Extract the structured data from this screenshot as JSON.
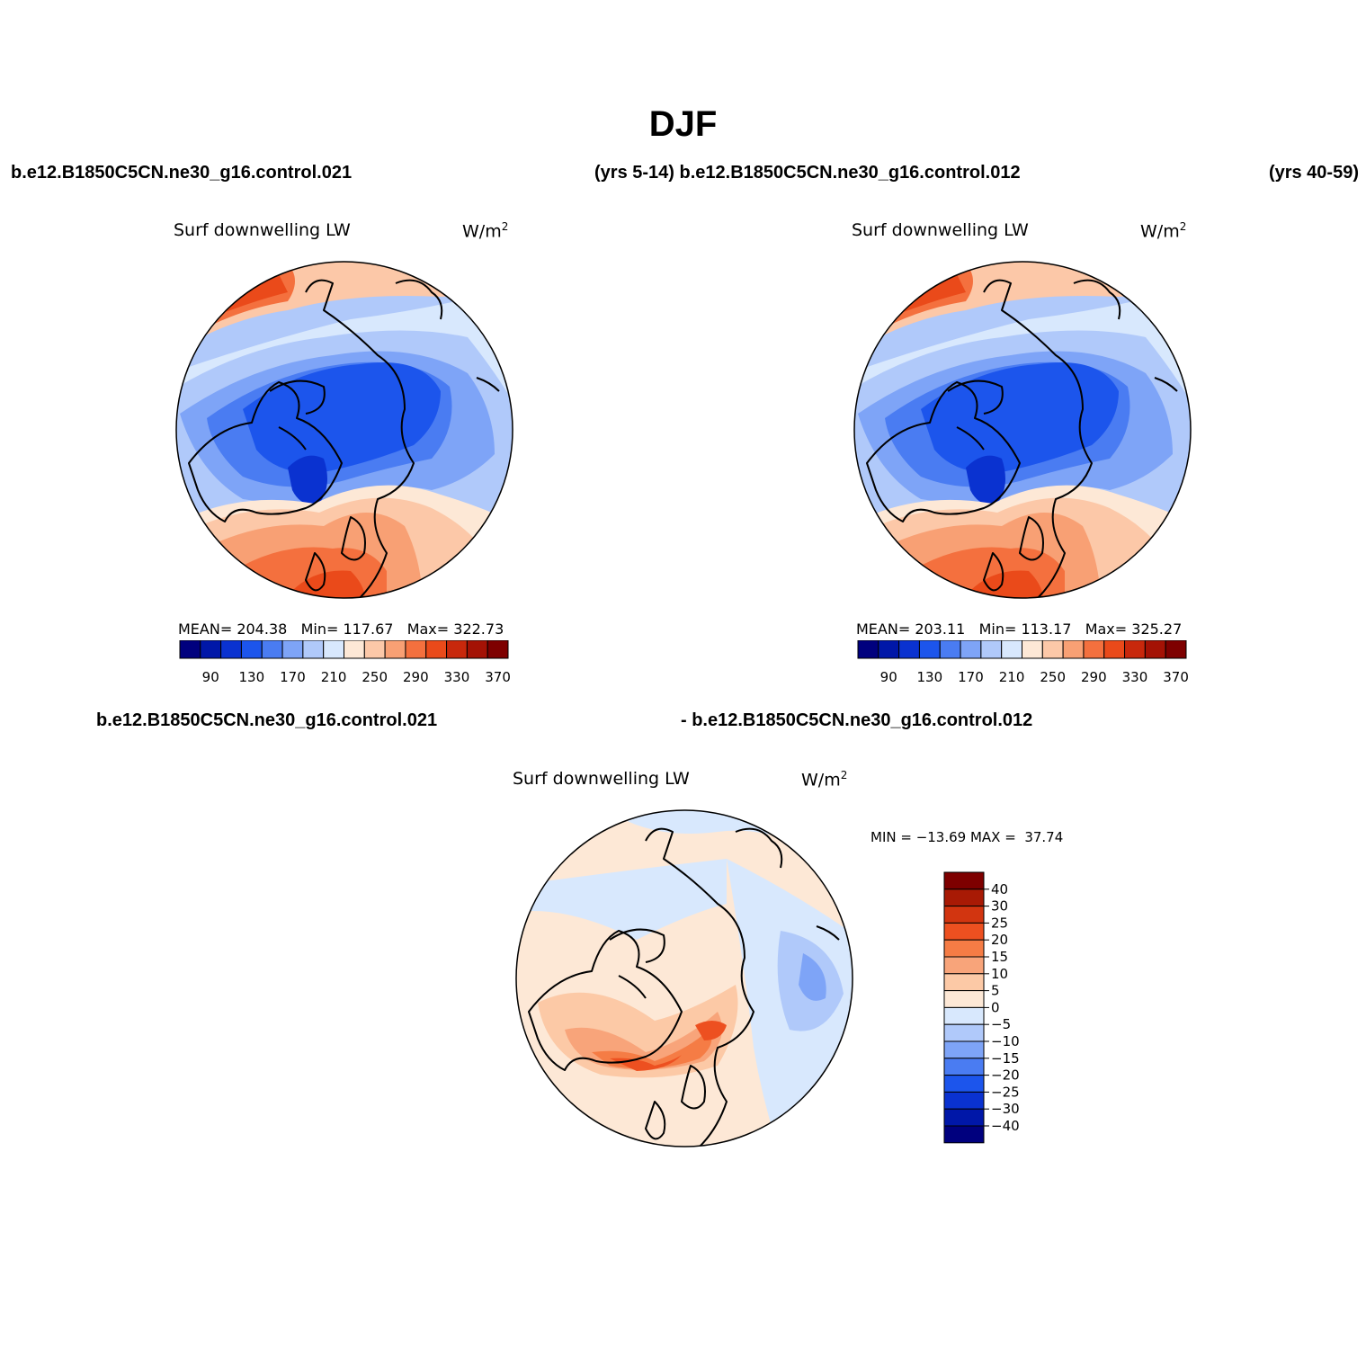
{
  "figure": {
    "season": "DJF",
    "header": {
      "case_a": "b.e12.B1850C5CN.ne30_g16.control.021",
      "years_a_with_case_b": "(yrs 5-14) b.e12.B1850C5CN.ne30_g16.control.012",
      "years_b": "(yrs 40-59)"
    },
    "diff_header": {
      "case_a": "b.e12.B1850C5CN.ne30_g16.control.021",
      "minus_case_b": "- b.e12.B1850C5CN.ne30_g16.control.012"
    }
  },
  "panels": [
    {
      "variable": "Surf downwelling LW",
      "units_base": "W/m",
      "units_exp": "2",
      "stats": "MEAN= 204.38   Min= 117.67   Max= 322.73",
      "colorbar_labels": [
        "90",
        "130",
        "170",
        "210",
        "250",
        "290",
        "330",
        "370"
      ]
    },
    {
      "variable": "Surf downwelling LW",
      "units_base": "W/m",
      "units_exp": "2",
      "stats": "MEAN= 203.11   Min= 113.17   Max= 325.27",
      "colorbar_labels": [
        "90",
        "130",
        "170",
        "210",
        "250",
        "290",
        "330",
        "370"
      ]
    }
  ],
  "difference_panel": {
    "variable": "Surf downwelling LW",
    "units_base": "W/m",
    "units_exp": "2",
    "minmax": "MIN = −13.69 MAX =  37.74",
    "colorbar_labels": [
      "40",
      "30",
      "25",
      "20",
      "15",
      "10",
      "5",
      "0",
      "−5",
      "−10",
      "−15",
      "−20",
      "−25",
      "−30",
      "−40"
    ]
  },
  "colors": {
    "field_scale": [
      "#00007e",
      "#0017a8",
      "#0a32d0",
      "#1c55ec",
      "#4a7cf2",
      "#7ea4f7",
      "#b0c9fa",
      "#d8e8fd",
      "#fde8d6",
      "#fcc8a8",
      "#f8a074",
      "#f4703e",
      "#ea4a1a",
      "#c8280c",
      "#a41205",
      "#7e0000"
    ],
    "diff_scale": [
      "#7e0000",
      "#a81a05",
      "#d23510",
      "#ed5020",
      "#f57c45",
      "#f8a47a",
      "#fcc9a6",
      "#fde8d6",
      "#d8e8fd",
      "#b0c9fa",
      "#7ea4f7",
      "#4a7cf2",
      "#1c55ec",
      "#0a32d0",
      "#0017a8",
      "#00007e"
    ],
    "map_outline": "#000000"
  }
}
